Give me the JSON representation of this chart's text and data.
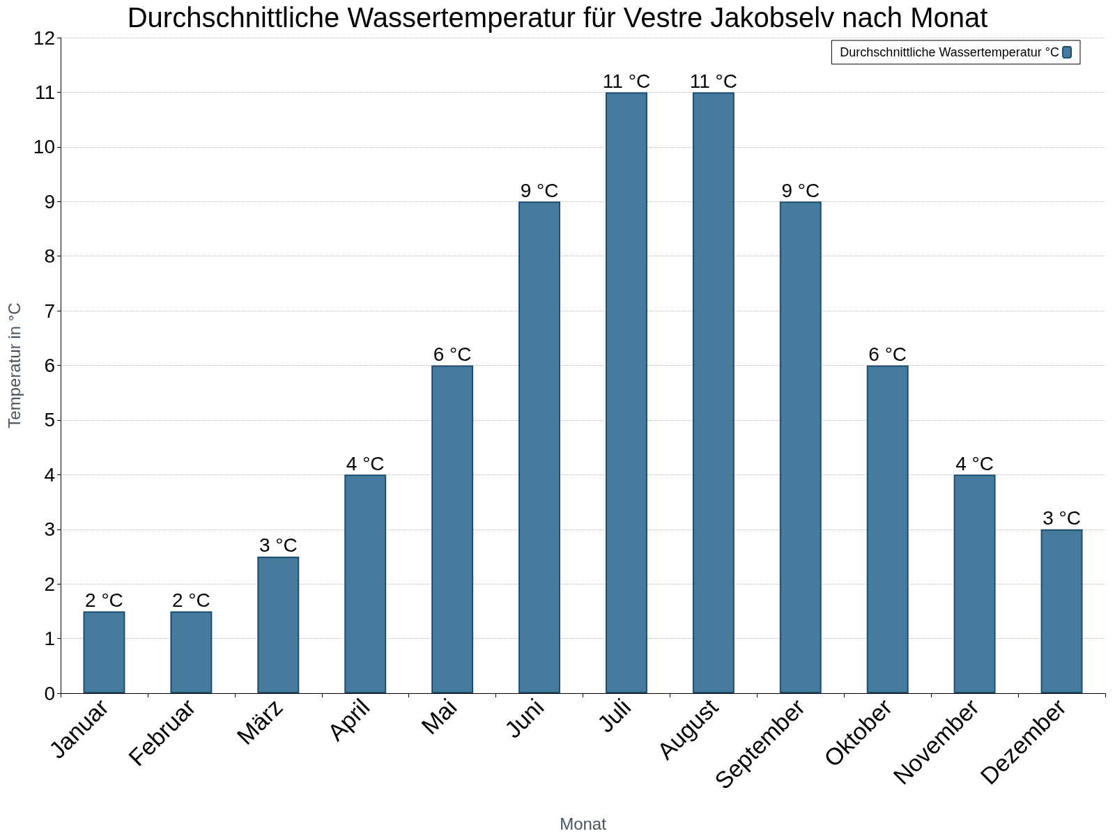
{
  "chart_data": {
    "type": "bar",
    "title": "Durchschnittliche Wassertemperatur für Vestre Jakobselv nach Monat",
    "xlabel": "Monat",
    "ylabel": "Temperatur in °C",
    "categories": [
      "Januar",
      "Februar",
      "März",
      "April",
      "Mai",
      "Juni",
      "Juli",
      "August",
      "September",
      "Oktober",
      "November",
      "Dezember"
    ],
    "series": [
      {
        "name": "Durchschnittliche Wassertemperatur °C",
        "color": "#457b9d",
        "values": [
          1.5,
          1.5,
          2.5,
          4,
          6,
          9,
          11,
          11,
          9,
          6,
          4,
          3
        ],
        "value_labels": [
          "2 °C",
          "2 °C",
          "3 °C",
          "4 °C",
          "6 °C",
          "9 °C",
          "11 °C",
          "11 °C",
          "9 °C",
          "6 °C",
          "4 °C",
          "3 °C"
        ]
      }
    ],
    "ylim": [
      0,
      12
    ],
    "yticks": [
      0,
      1,
      2,
      3,
      4,
      5,
      6,
      7,
      8,
      9,
      10,
      11,
      12
    ],
    "grid": "y",
    "legend": "top right"
  }
}
